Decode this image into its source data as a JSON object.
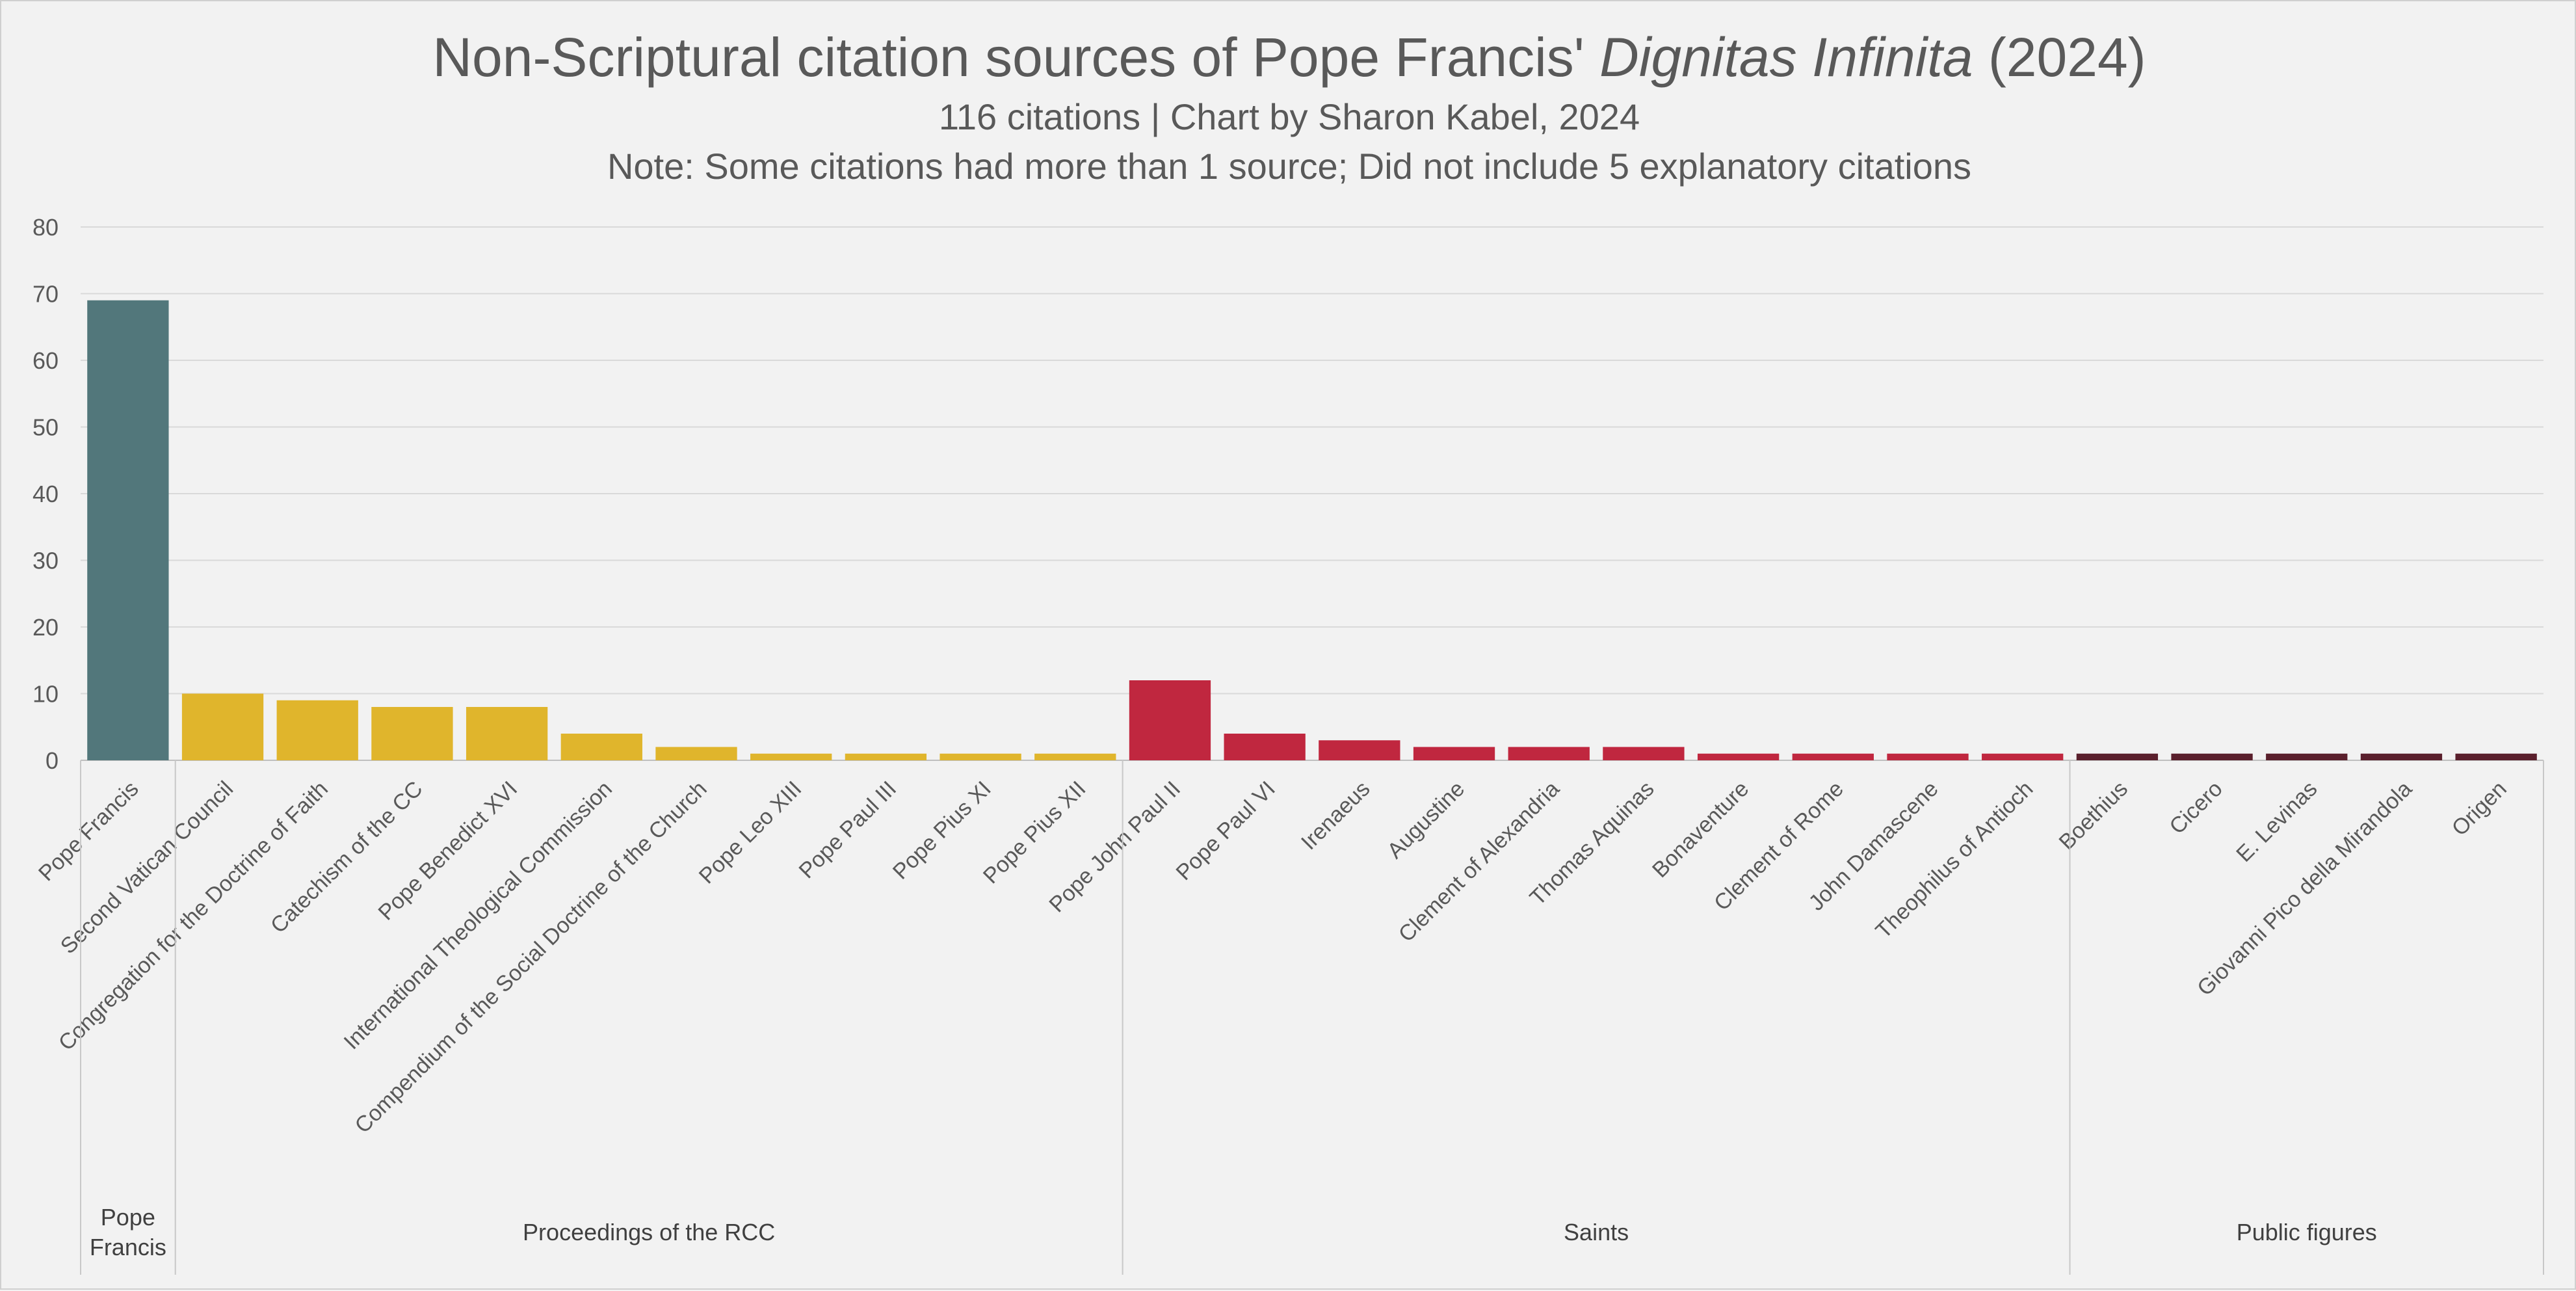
{
  "chart_data": {
    "type": "bar",
    "title_plain": "Non-Scriptural citation sources of Pope Francis' ",
    "title_italic": "Dignitas Infinita",
    "title_suffix": " (2024)",
    "subtitle": "116 citations | Chart by Sharon Kabel, 2024",
    "note": "Note: Some citations had more than 1 source; Did not include 5 explanatory citations",
    "xlabel": "",
    "ylabel": "",
    "ylim": [
      0,
      80
    ],
    "yticks": [
      0,
      10,
      20,
      30,
      40,
      50,
      60,
      70,
      80
    ],
    "grid": true,
    "categories": [
      "Pope Francis",
      "Second Vatican Council",
      "Congregation for the Doctrine of Faith",
      "Catechism of the CC",
      "Pope Benedict XVI",
      "International Theological Commission",
      "Compendium of the Social Doctrine of the Church",
      "Pope Leo XIII",
      "Pope Paul III",
      "Pope Pius XI",
      "Pope Pius XII",
      "Pope John Paul II",
      "Pope Paul VI",
      "Irenaeus",
      "Augustine",
      "Clement of Alexandria",
      "Thomas Aquinas",
      "Bonaventure",
      "Clement of Rome",
      "John Damascene",
      "Theophilus of Antioch",
      "Boethius",
      "Cicero",
      "E. Levinas",
      "Giovanni Pico della Mirandola",
      "Origen"
    ],
    "values": [
      69,
      10,
      9,
      8,
      8,
      4,
      2,
      1,
      1,
      1,
      1,
      12,
      4,
      3,
      2,
      2,
      2,
      1,
      1,
      1,
      1,
      1,
      1,
      1,
      1,
      1
    ],
    "groups": [
      {
        "label_lines": [
          "Pope",
          "Francis"
        ],
        "start": 0,
        "end": 0,
        "color": "#52777b"
      },
      {
        "label_lines": [
          "Proceedings of the RCC"
        ],
        "start": 1,
        "end": 10,
        "color": "#e0b52c"
      },
      {
        "label_lines": [
          "Saints"
        ],
        "start": 11,
        "end": 20,
        "color": "#c0273f"
      },
      {
        "label_lines": [
          "Public figures"
        ],
        "start": 21,
        "end": 25,
        "color": "#5a1f2c"
      }
    ]
  }
}
